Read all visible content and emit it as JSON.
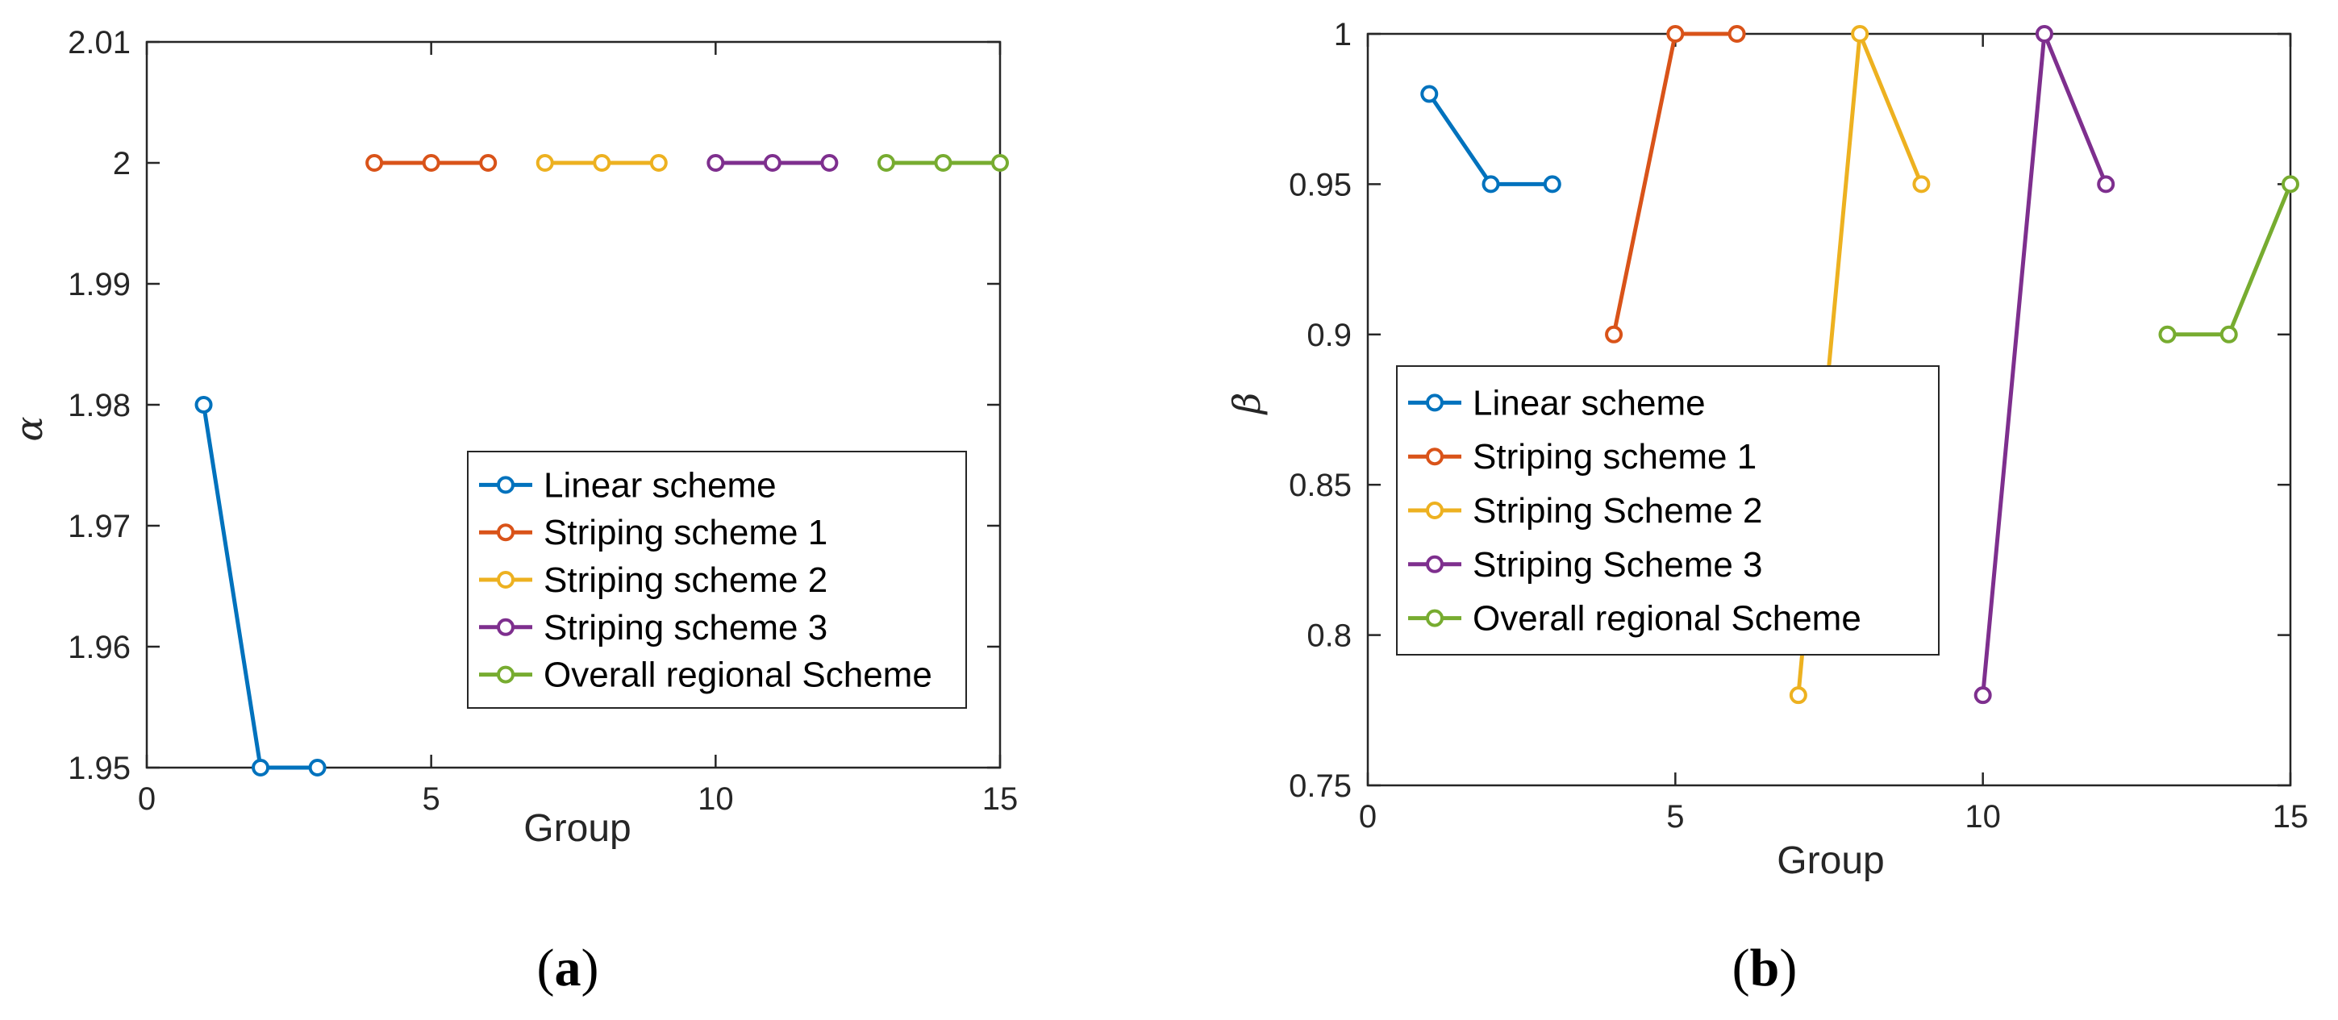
{
  "colors": {
    "linear": "#0072BD",
    "striping1": "#D95319",
    "striping2": "#EDB120",
    "striping3": "#7E2F8E",
    "overall": "#77AC30",
    "axis": "#262626"
  },
  "chart_data": [
    {
      "id": "a",
      "type": "line",
      "caption": {
        "open": "(",
        "letter": "a",
        "close": ")"
      },
      "xlabel": "Group",
      "ylabel": "α",
      "xlim": [
        0,
        15
      ],
      "ylim": [
        1.95,
        2.01
      ],
      "xticks": [
        0,
        5,
        10,
        15
      ],
      "xtick_labels": [
        "0",
        "5",
        "10",
        "15"
      ],
      "yticks": [
        1.95,
        1.96,
        1.97,
        1.98,
        1.99,
        2.0,
        2.01
      ],
      "ytick_labels": [
        "1.95",
        "1.96",
        "1.97",
        "1.98",
        "1.99",
        "2",
        "2.01"
      ],
      "legend_position": "lower-right",
      "series": [
        {
          "name": "Linear scheme",
          "color_key": "linear",
          "x": [
            1,
            2,
            3
          ],
          "y": [
            1.98,
            1.95,
            1.95
          ]
        },
        {
          "name": "Striping scheme 1",
          "color_key": "striping1",
          "x": [
            4,
            5,
            6
          ],
          "y": [
            2.0,
            2.0,
            2.0
          ]
        },
        {
          "name": "Striping scheme 2",
          "color_key": "striping2",
          "x": [
            7,
            8,
            9
          ],
          "y": [
            2.0,
            2.0,
            2.0
          ]
        },
        {
          "name": "Striping scheme 3",
          "color_key": "striping3",
          "x": [
            10,
            11,
            12
          ],
          "y": [
            2.0,
            2.0,
            2.0
          ]
        },
        {
          "name": "Overall regional Scheme",
          "color_key": "overall",
          "x": [
            13,
            14,
            15
          ],
          "y": [
            2.0,
            2.0,
            2.0
          ]
        }
      ]
    },
    {
      "id": "b",
      "type": "line",
      "caption": {
        "open": "(",
        "letter": "b",
        "close": ")"
      },
      "xlabel": "Group",
      "ylabel": "β",
      "xlim": [
        0,
        15
      ],
      "ylim": [
        0.75,
        1.0
      ],
      "xticks": [
        0,
        5,
        10,
        15
      ],
      "xtick_labels": [
        "0",
        "5",
        "10",
        "15"
      ],
      "yticks": [
        0.75,
        0.8,
        0.85,
        0.9,
        0.95,
        1.0
      ],
      "ytick_labels": [
        "0.75",
        "0.8",
        "0.85",
        "0.9",
        "0.95",
        "1"
      ],
      "legend_position": "left",
      "series": [
        {
          "name": "Linear scheme",
          "color_key": "linear",
          "x": [
            1,
            2,
            3
          ],
          "y": [
            0.98,
            0.95,
            0.95
          ]
        },
        {
          "name": "Striping scheme 1",
          "color_key": "striping1",
          "x": [
            4,
            5,
            6
          ],
          "y": [
            0.9,
            1.0,
            1.0
          ]
        },
        {
          "name": "Striping Scheme 2",
          "color_key": "striping2",
          "x": [
            7,
            8,
            9
          ],
          "y": [
            0.78,
            1.0,
            0.95
          ]
        },
        {
          "name": "Striping Scheme 3",
          "color_key": "striping3",
          "x": [
            10,
            11,
            12
          ],
          "y": [
            0.78,
            1.0,
            0.95
          ]
        },
        {
          "name": "Overall regional Scheme",
          "color_key": "overall",
          "x": [
            13,
            14,
            15
          ],
          "y": [
            0.9,
            0.9,
            0.95
          ]
        }
      ]
    }
  ]
}
